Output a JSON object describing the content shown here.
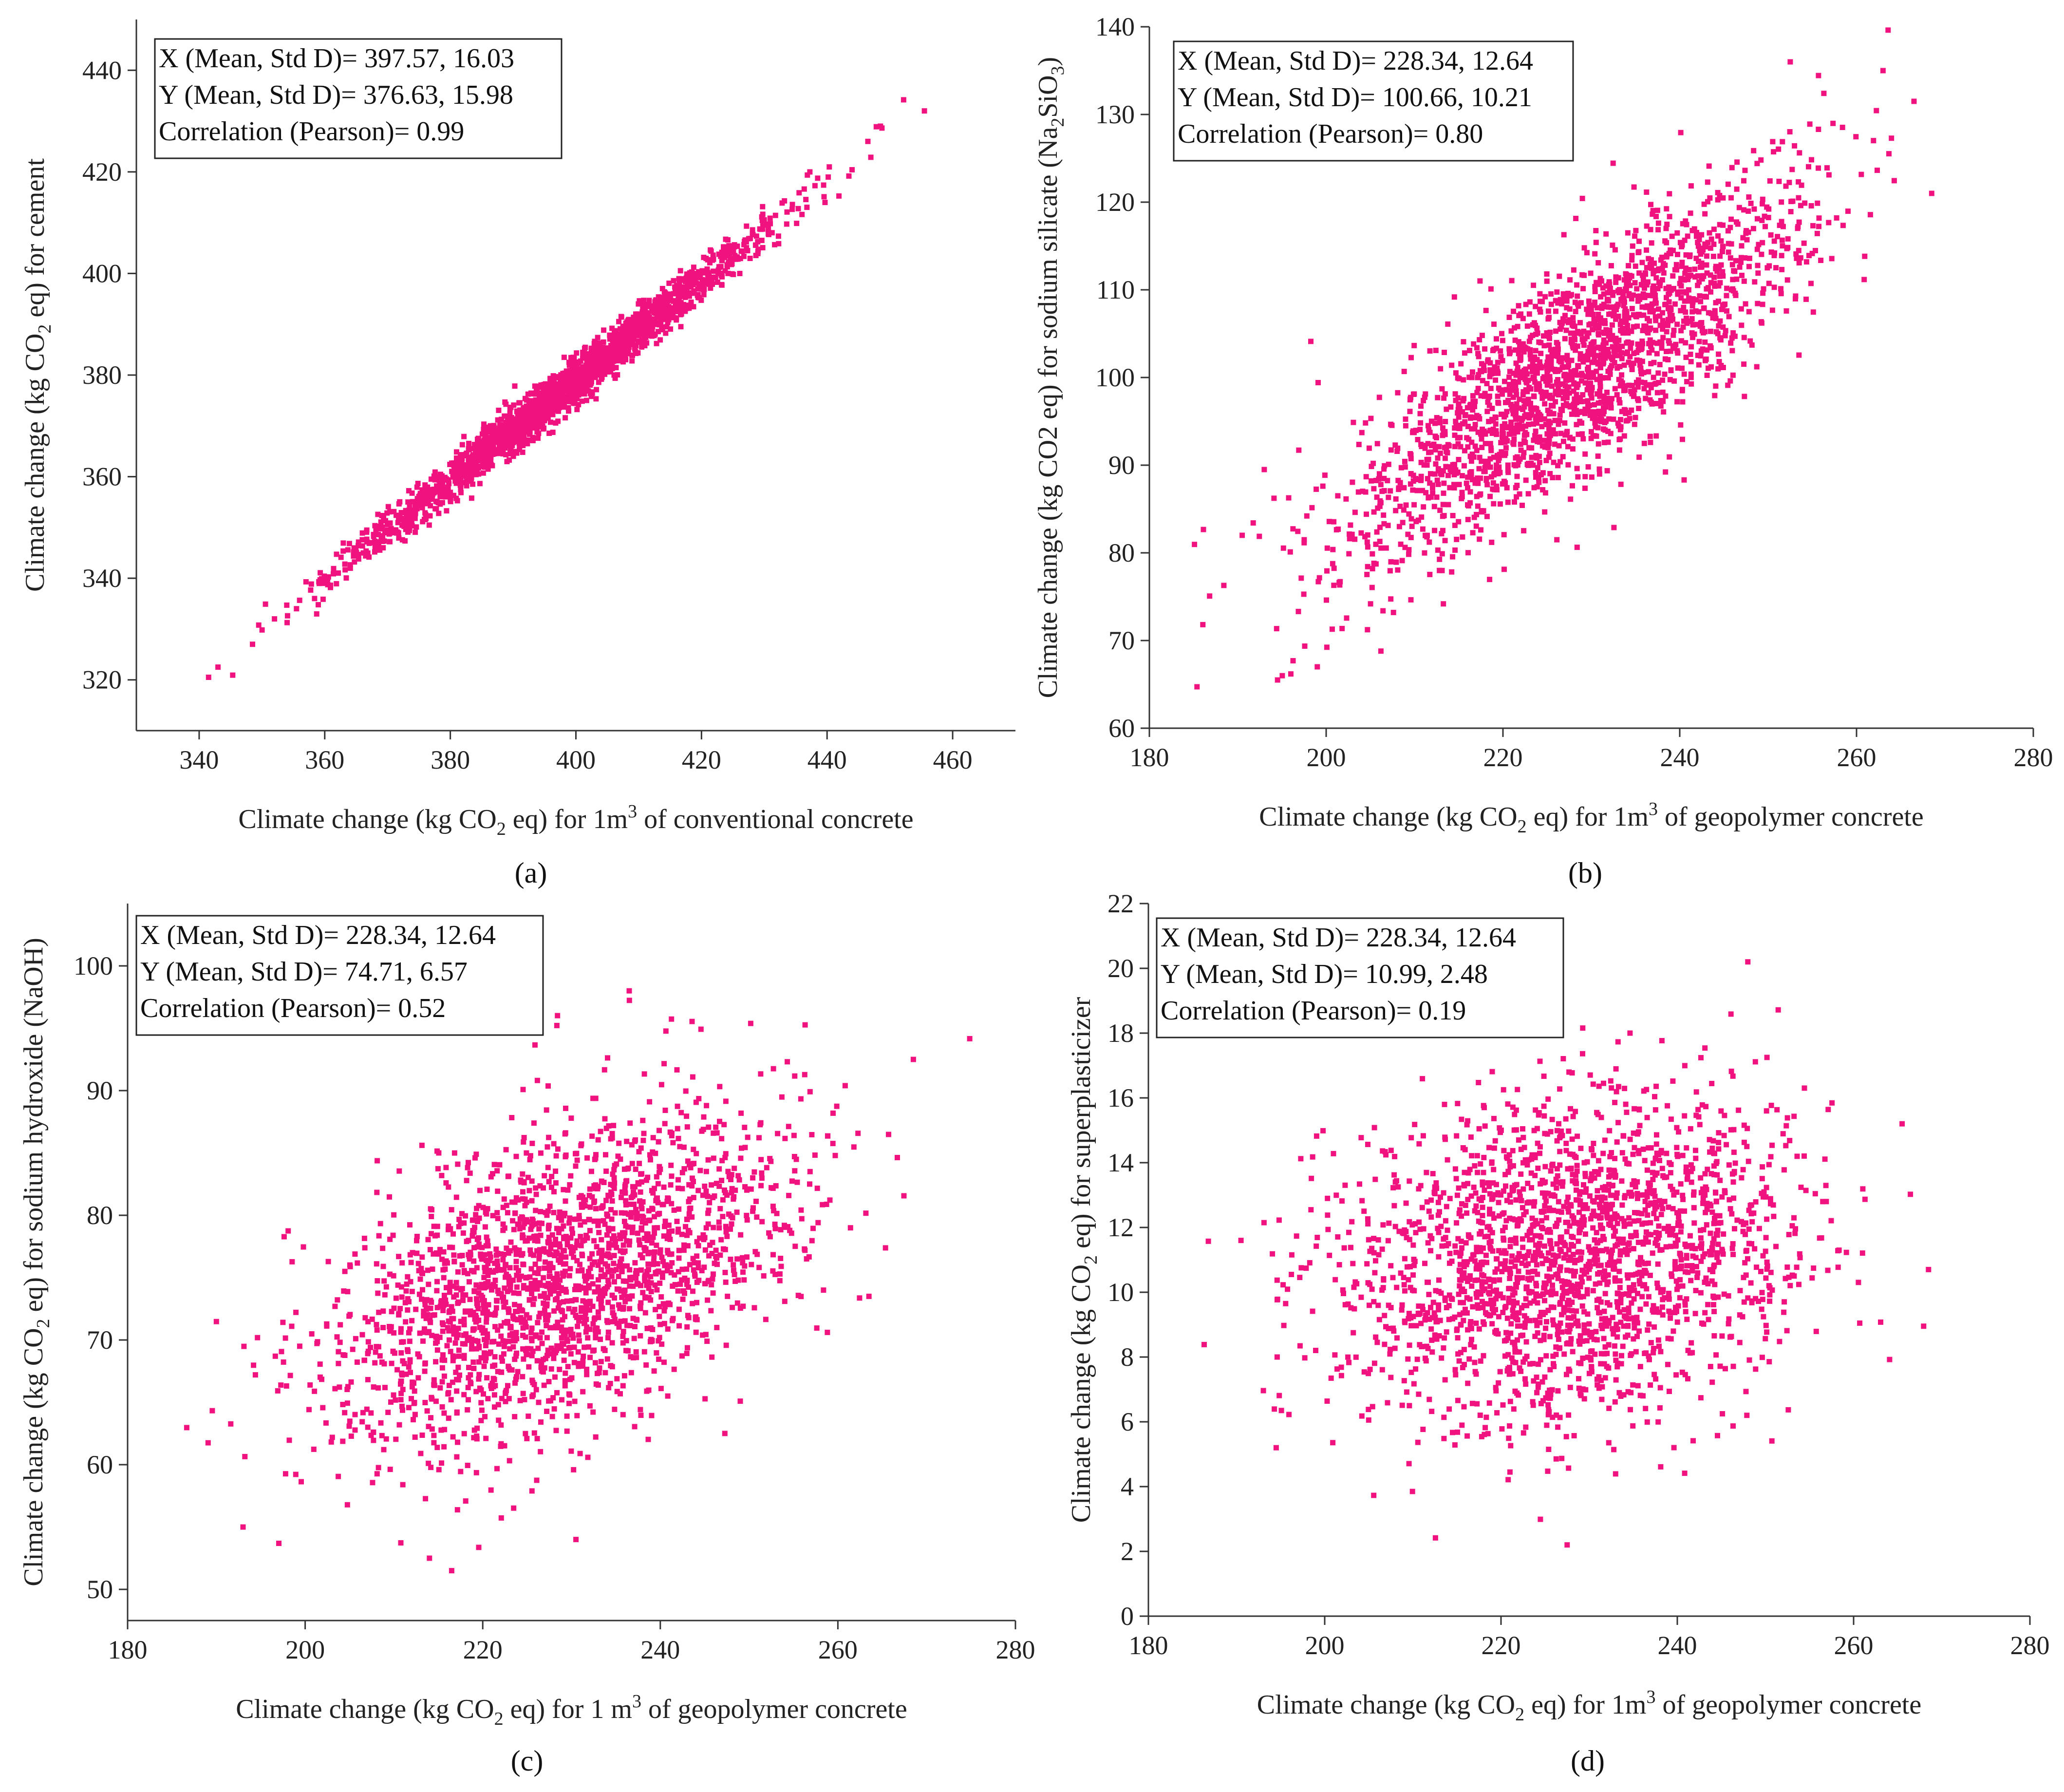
{
  "figure": {
    "marker_color": "#f0137f",
    "panels": [
      {
        "id": "a",
        "panel_label": "(a)",
        "stats": {
          "x": "X (Mean, Std D)= 397.57, 16.03",
          "y": "Y (Mean, Std D)=  376.63, 15.98",
          "corr": "Correlation (Pearson)= 0.99"
        }
      },
      {
        "id": "b",
        "panel_label": "(b)",
        "stats": {
          "x": "X (Mean, Std D)= 228.34, 12.64",
          "y": "Y (Mean, Std D)= 100.66, 10.21",
          "corr": "Correlation (Pearson)= 0.80"
        }
      },
      {
        "id": "c",
        "panel_label": "(c)",
        "stats": {
          "x": "X (Mean, Std D)= 228.34, 12.64",
          "y": "Y (Mean, Std D)= 74.71, 6.57",
          "corr": "Correlation (Pearson)= 0.52"
        }
      },
      {
        "id": "d",
        "panel_label": "(d)",
        "stats": {
          "x": "X (Mean, Std D)= 228.34, 12.64",
          "y": "Y (Mean, Std D)= 10.99, 2.48",
          "corr": "Correlation (Pearson)= 0.19"
        }
      }
    ]
  },
  "chart_data": [
    {
      "type": "scatter",
      "panel": "a",
      "n_points": 2200,
      "xlabel": {
        "pre": "Climate change (kg CO",
        "sub": "2",
        "mid": " eq) for 1m",
        "sup": "3",
        "post": " of conventional concrete"
      },
      "ylabel": {
        "pre": "Climate change (kg CO",
        "sub": "2",
        "post": " eq) for cement"
      },
      "xlim": [
        330,
        470
      ],
      "ylim": [
        310,
        450
      ],
      "xticks": [
        340,
        360,
        380,
        400,
        420,
        440,
        460
      ],
      "yticks": [
        320,
        340,
        360,
        380,
        400,
        420,
        440
      ],
      "x_mean": 397.57,
      "x_std": 16.03,
      "y_mean": 376.63,
      "y_std": 15.98,
      "pearson": 0.99,
      "notable_points": [
        [
          341.5,
          320.5
        ],
        [
          343,
          322.5
        ],
        [
          348.5,
          327
        ],
        [
          352,
          332
        ],
        [
          455.5,
          432
        ],
        [
          448.5,
          429
        ],
        [
          446.5,
          426
        ]
      ]
    },
    {
      "type": "scatter",
      "panel": "b",
      "n_points": 2200,
      "xlabel": {
        "pre": "Climate change (kg CO",
        "sub": "2",
        "mid": " eq) for 1m",
        "sup": "3",
        "post": " of geopolymer concrete"
      },
      "ylabel": {
        "pre": "Climate change (kg CO2 eq) for sodium silicate (Na",
        "sub": "2",
        "mid": "SiO",
        "sub2": "3",
        "post": ")"
      },
      "xlim": [
        180,
        280
      ],
      "ylim": [
        60,
        140
      ],
      "xticks": [
        180,
        200,
        220,
        240,
        260,
        280
      ],
      "yticks": [
        60,
        70,
        80,
        90,
        100,
        110,
        120,
        130,
        140
      ],
      "x_mean": 228.34,
      "x_std": 12.64,
      "y_mean": 100.66,
      "y_std": 10.21,
      "pearson": 0.8,
      "notable_points": [
        [
          190.5,
          82
        ],
        [
          193,
          89.5
        ],
        [
          194.5,
          65.5
        ],
        [
          199,
          67
        ],
        [
          252.5,
          136
        ],
        [
          263,
          135
        ],
        [
          268.5,
          121
        ],
        [
          266.5,
          131.5
        ]
      ]
    },
    {
      "type": "scatter",
      "panel": "c",
      "n_points": 2200,
      "xlabel": {
        "pre": "Climate change (kg CO",
        "sub": "2",
        "mid": " eq) for 1 m",
        "sup": "3",
        "post": " of geopolymer concrete"
      },
      "ylabel": {
        "pre": "Climate change (kg CO",
        "sub": "2",
        "post": " eq) for sodium hydroxide (NaOH)"
      },
      "xlim": [
        180,
        280
      ],
      "ylim": [
        47.5,
        105
      ],
      "xticks": [
        180,
        200,
        220,
        240,
        260,
        280
      ],
      "yticks": [
        50,
        60,
        70,
        80,
        90,
        100
      ],
      "x_mean": 228.34,
      "x_std": 12.64,
      "y_mean": 74.71,
      "y_std": 6.57,
      "pearson": 0.52,
      "notable_points": [
        [
          193,
          55
        ],
        [
          214,
          52.5
        ],
        [
          216.5,
          51.5
        ],
        [
          230.5,
          54
        ],
        [
          236.5,
          98
        ],
        [
          268.5,
          92.5
        ],
        [
          263.5,
          73.5
        ]
      ]
    },
    {
      "type": "scatter",
      "panel": "d",
      "n_points": 2200,
      "xlabel": {
        "pre": "Climate change (kg CO",
        "sub": "2",
        "mid": " eq) for 1m",
        "sup": "3",
        "post": " of geopolymer concrete"
      },
      "ylabel": {
        "pre": "Climate change (kg CO",
        "sub": "2",
        "post": " eq) for superplasticizer"
      },
      "xlim": [
        180,
        280
      ],
      "ylim": [
        0,
        22
      ],
      "xticks": [
        180,
        200,
        220,
        240,
        260,
        280
      ],
      "yticks": [
        0,
        2,
        4,
        6,
        8,
        10,
        12,
        14,
        16,
        18,
        20,
        22
      ],
      "x_mean": 228.34,
      "x_std": 12.64,
      "y_mean": 10.99,
      "y_std": 2.48,
      "pearson": 0.19,
      "notable_points": [
        [
          194.5,
          5.2
        ],
        [
          190.5,
          11.6
        ],
        [
          227.5,
          2.2
        ],
        [
          248,
          20.2
        ],
        [
          268.5,
          10.7
        ],
        [
          265.5,
          15.2
        ]
      ]
    }
  ]
}
